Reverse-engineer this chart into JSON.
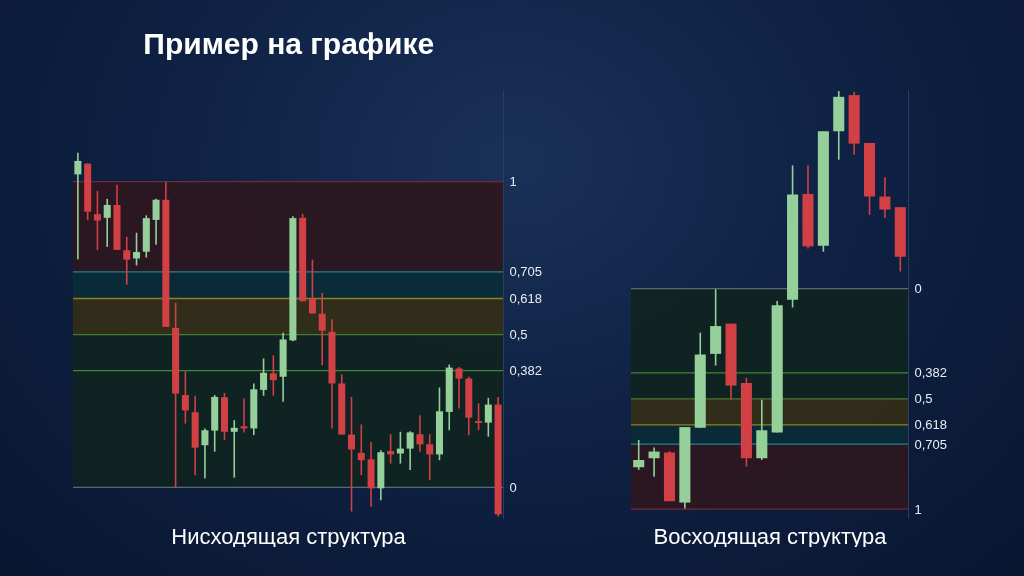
{
  "chart_data": [
    {
      "type": "candlestick",
      "title": "Пример на графике",
      "xlabel": "Нисходящая структура",
      "tick_labels": "y",
      "categories": [
        null,
        null,
        null,
        null,
        null,
        null,
        null,
        null,
        null,
        null,
        null,
        null,
        null,
        null,
        null,
        null,
        null,
        null,
        null,
        null,
        null,
        null,
        null,
        null,
        null,
        null,
        null,
        null,
        null,
        null,
        null,
        null,
        null,
        null,
        null,
        null,
        null,
        null,
        null,
        null,
        null,
        null,
        null,
        null
      ],
      "ohlc": [
        [
          1.024,
          1.095,
          0.746,
          1.068
        ],
        [
          1.059,
          1.06,
          0.874,
          0.902
        ],
        [
          0.894,
          0.97,
          0.776,
          0.873
        ],
        [
          0.882,
          0.944,
          0.787,
          0.924
        ],
        [
          0.924,
          0.99,
          0.777,
          0.777
        ],
        [
          0.776,
          0.82,
          0.663,
          0.745
        ],
        [
          0.749,
          0.833,
          0.726,
          0.77
        ],
        [
          0.771,
          0.89,
          0.752,
          0.881
        ],
        [
          0.875,
          0.944,
          0.794,
          0.941
        ],
        [
          0.941,
          1.0,
          0.525,
          0.525
        ],
        [
          0.522,
          0.604,
          0,
          0.307
        ],
        [
          0.302,
          0.38,
          0.209,
          0.252
        ],
        [
          0.246,
          0.3,
          0.04,
          0.13
        ],
        [
          0.138,
          0.193,
          0.029,
          0.187
        ],
        [
          0.186,
          0.302,
          0.117,
          0.296
        ],
        [
          0.295,
          0.309,
          0.155,
          0.182
        ],
        [
          0.182,
          0.22,
          0.032,
          0.195
        ],
        [
          0.2,
          0.291,
          0.18,
          0.193
        ],
        [
          0.193,
          0.34,
          0.171,
          0.321
        ],
        [
          0.319,
          0.422,
          0.3,
          0.375
        ],
        [
          0.373,
          0.432,
          0.3,
          0.351
        ],
        [
          0.362,
          0.506,
          0.28,
          0.484
        ],
        [
          0.481,
          0.887,
          0.478,
          0.881
        ],
        [
          0.882,
          0.895,
          0.609,
          0.609
        ],
        [
          0.618,
          0.745,
          0.569,
          0.569
        ],
        [
          0.568,
          0.636,
          0.4,
          0.513
        ],
        [
          0.509,
          0.55,
          0.193,
          0.34
        ],
        [
          0.34,
          0.37,
          0.173,
          0.173
        ],
        [
          0.173,
          0.296,
          -0.079,
          0.124
        ],
        [
          0.113,
          0.206,
          0.04,
          0.089
        ],
        [
          0.092,
          0.149,
          -0.063,
          -0.003
        ],
        [
          -0.003,
          0.122,
          -0.042,
          0.115
        ],
        [
          0.119,
          0.174,
          0.078,
          0.108
        ],
        [
          0.111,
          0.182,
          0.078,
          0.127
        ],
        [
          0.127,
          0.184,
          0.057,
          0.18
        ],
        [
          0.174,
          0.236,
          0.117,
          0.141
        ],
        [
          0.141,
          0.174,
          0.024,
          0.108
        ],
        [
          0.108,
          0.327,
          0.089,
          0.249
        ],
        [
          0.247,
          0.402,
          0.187,
          0.392
        ],
        [
          0.389,
          0.394,
          0.258,
          0.356
        ],
        [
          0.356,
          0.362,
          0.171,
          0.228
        ],
        [
          0.217,
          0.275,
          0.187,
          0.211
        ],
        [
          0.212,
          0.293,
          0.166,
          0.271
        ],
        [
          0.271,
          0.296,
          -0.095,
          -0.088
        ]
      ],
      "colors": [
        "#95d09a",
        "#d04045",
        "#d04045",
        "#95d09a",
        "#d04045",
        "#d04045",
        "#95d09a",
        "#95d09a",
        "#95d09a",
        "#d04045",
        "#d04045",
        "#d04045",
        "#d04045",
        "#95d09a",
        "#95d09a",
        "#d04045",
        "#95d09a",
        "#d04045",
        "#95d09a",
        "#95d09a",
        "#d04045",
        "#95d09a",
        "#95d09a",
        "#d04045",
        "#d04045",
        "#d04045",
        "#d04045",
        "#d04045",
        "#d04045",
        "#d04045",
        "#d04045",
        "#95d09a",
        "#d04045",
        "#95d09a",
        "#95d09a",
        "#d04045",
        "#d04045",
        "#95d09a",
        "#95d09a",
        "#d04045",
        "#d04045",
        "#d04045",
        "#95d09a",
        "#d04045"
      ],
      "ylim": [
        -0.1,
        1.3
      ],
      "yticks": [
        {
          "value": 0,
          "label": "0"
        },
        {
          "value": 0.382,
          "label": "0,382"
        },
        {
          "value": 0.5,
          "label": "0,5"
        },
        {
          "value": 0.618,
          "label": "0,618"
        },
        {
          "value": 0.705,
          "label": "0,705"
        },
        {
          "value": 1,
          "label": "1"
        }
      ],
      "bands": [
        {
          "axis": "y",
          "from": 0.705,
          "to": 1,
          "color": "#2c171f"
        },
        {
          "axis": "y",
          "from": 0.618,
          "to": 0.705,
          "color": "#0a2b36"
        },
        {
          "axis": "y",
          "from": 0.5,
          "to": 0.618,
          "color": "#332f17"
        },
        {
          "axis": "y",
          "from": 0.382,
          "to": 0.5,
          "color": "#0f2420"
        },
        {
          "axis": "y",
          "from": 0,
          "to": 0.382,
          "color": "#0f2420"
        }
      ],
      "ref_lines": [
        {
          "axis": "y",
          "value": 1,
          "color": "#6e2a36"
        },
        {
          "axis": "y",
          "value": 0.705,
          "color": "#26808e"
        },
        {
          "axis": "y",
          "value": 0.618,
          "color": "#8c8420"
        },
        {
          "axis": "y",
          "value": 0.5,
          "color": "#4a7a30"
        },
        {
          "axis": "y",
          "value": 0.382,
          "color": "#3a8a3a"
        },
        {
          "axis": "y",
          "value": 0,
          "color": "#5c6878"
        }
      ]
    },
    {
      "type": "candlestick",
      "xlabel": "Восходящая структура",
      "tick_labels": "y",
      "categories": [
        null,
        null,
        null,
        null,
        null,
        null,
        null,
        null,
        null,
        null,
        null,
        null,
        null,
        null,
        null,
        null,
        null,
        null
      ],
      "ohlc": [
        [
          0.81,
          0.822,
          0.686,
          0.777
        ],
        [
          0.769,
          0.853,
          0.721,
          0.739
        ],
        [
          0.743,
          0.964,
          0.736,
          0.964
        ],
        [
          0.97,
          0.997,
          0.628,
          0.628
        ],
        [
          0.631,
          0.631,
          0.2,
          0.299
        ],
        [
          0.296,
          0.349,
          0.003,
          0.17
        ],
        [
          0.159,
          0.504,
          0.159,
          0.44
        ],
        [
          0.428,
          0.807,
          0.405,
          0.769
        ],
        [
          0.769,
          0.777,
          0.504,
          0.642
        ],
        [
          0.652,
          0.652,
          0.056,
          0.076
        ],
        [
          0.051,
          0.086,
          -0.558,
          -0.426
        ],
        [
          -0.429,
          -0.182,
          -0.558,
          -0.191
        ],
        [
          -0.194,
          -0.167,
          -0.713,
          -0.713
        ],
        [
          -0.713,
          -0.584,
          -0.895,
          -0.869
        ],
        [
          -0.877,
          -0.607,
          -0.892,
          -0.657
        ],
        [
          -0.66,
          -0.334,
          -0.66,
          -0.417
        ],
        [
          -0.417,
          -0.32,
          -0.505,
          -0.358
        ],
        [
          -0.369,
          -0.077,
          -0.369,
          -0.144
        ]
      ],
      "colors": [
        "#95d09a",
        "#95d09a",
        "#d04045",
        "#95d09a",
        "#95d09a",
        "#95d09a",
        "#d04045",
        "#d04045",
        "#95d09a",
        "#95d09a",
        "#95d09a",
        "#d04045",
        "#95d09a",
        "#95d09a",
        "#d04045",
        "#d04045",
        "#d04045",
        "#d04045"
      ],
      "ylim": [
        1.04,
        -0.9
      ],
      "yticks": [
        {
          "value": 0,
          "label": "0"
        },
        {
          "value": 0.382,
          "label": "0,382"
        },
        {
          "value": 0.5,
          "label": "0,5"
        },
        {
          "value": 0.618,
          "label": "0,618"
        },
        {
          "value": 0.705,
          "label": "0,705"
        },
        {
          "value": 1,
          "label": "1"
        }
      ],
      "bands": [
        {
          "axis": "y",
          "from": 0.705,
          "to": 1,
          "color": "#2c171f"
        },
        {
          "axis": "y",
          "from": 0.618,
          "to": 0.705,
          "color": "#0a2b36"
        },
        {
          "axis": "y",
          "from": 0.5,
          "to": 0.618,
          "color": "#332f17"
        },
        {
          "axis": "y",
          "from": 0.382,
          "to": 0.5,
          "color": "#0f2420"
        },
        {
          "axis": "y",
          "from": 0,
          "to": 0.382,
          "color": "#0f2420"
        }
      ],
      "ref_lines": [
        {
          "axis": "y",
          "value": 1,
          "color": "#6e2a36"
        },
        {
          "axis": "y",
          "value": 0.705,
          "color": "#26808e"
        },
        {
          "axis": "y",
          "value": 0.618,
          "color": "#8c8420"
        },
        {
          "axis": "y",
          "value": 0.5,
          "color": "#4a7a30"
        },
        {
          "axis": "y",
          "value": 0.382,
          "color": "#3a8a3a"
        },
        {
          "axis": "y",
          "value": 0,
          "color": "#5c6878"
        }
      ]
    }
  ]
}
